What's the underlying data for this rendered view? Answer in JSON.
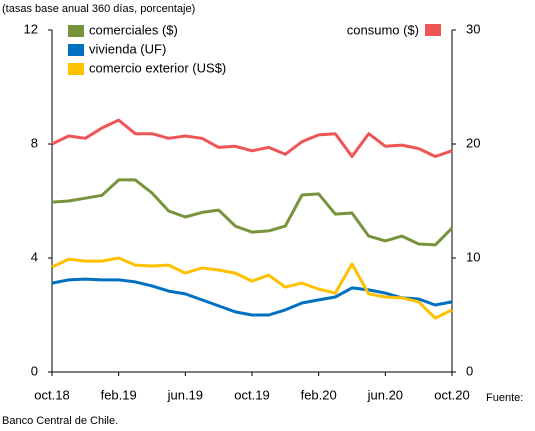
{
  "chart_data": {
    "type": "line",
    "subtitle": "(tasas base anual 360 días, porcentaje)",
    "categories": [
      "oct.18",
      null,
      null,
      null,
      "feb.19",
      null,
      null,
      null,
      "jun.19",
      null,
      null,
      null,
      "oct.19",
      null,
      null,
      null,
      "feb.20",
      null,
      null,
      null,
      "jun.20",
      null,
      null,
      null,
      "oct.20"
    ],
    "series": [
      {
        "name": "comerciales ($)",
        "color": "#77933c",
        "values": [
          5.96,
          6.0,
          6.1,
          6.2,
          6.74,
          6.74,
          6.28,
          5.65,
          5.44,
          5.6,
          5.68,
          5.12,
          4.91,
          4.95,
          5.12,
          6.21,
          6.25,
          5.54,
          5.58,
          4.77,
          4.6,
          4.77,
          4.49,
          4.46,
          5.05
        ]
      },
      {
        "name": "vivienda (UF)",
        "color": "#0070c0",
        "values": [
          3.12,
          3.23,
          3.26,
          3.23,
          3.23,
          3.16,
          3.02,
          2.84,
          2.74,
          2.53,
          2.32,
          2.11,
          2.0,
          2.0,
          2.18,
          2.42,
          2.53,
          2.63,
          2.95,
          2.88,
          2.77,
          2.6,
          2.56,
          2.35,
          2.46
        ]
      },
      {
        "name": "comercio exterior (US$)",
        "color": "#ffc000",
        "values": [
          3.68,
          3.96,
          3.89,
          3.89,
          4.0,
          3.75,
          3.72,
          3.75,
          3.47,
          3.65,
          3.58,
          3.47,
          3.19,
          3.4,
          2.98,
          3.12,
          2.91,
          2.77,
          3.79,
          2.74,
          2.63,
          2.6,
          2.46,
          1.89,
          2.18
        ]
      },
      {
        "name": "consumo ($)",
        "color": "#f05555",
        "axis": "y2",
        "values": [
          20.0,
          20.7,
          20.5,
          21.4,
          22.1,
          20.9,
          20.9,
          20.5,
          20.7,
          20.5,
          19.7,
          19.8,
          19.4,
          19.7,
          19.1,
          20.2,
          20.8,
          20.9,
          18.9,
          20.9,
          19.8,
          19.9,
          19.6,
          18.9,
          19.4
        ]
      }
    ],
    "ylim": [
      0,
      12
    ],
    "yticks": [
      0,
      4,
      8,
      12
    ],
    "y2lim": [
      0,
      30
    ],
    "y2ticks": [
      0,
      10,
      20,
      30
    ],
    "source_label": "Fuente:",
    "source": "Banco Central de Chile."
  }
}
